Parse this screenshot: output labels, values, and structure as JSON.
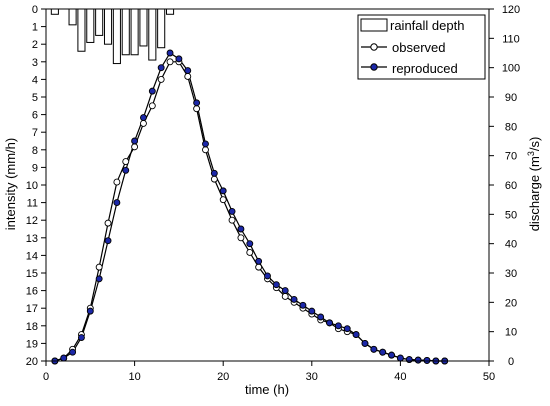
{
  "chart_data": {
    "type": "bar+line",
    "xlabel": "time (h)",
    "ylabel_left": "intensity (mm/h)",
    "ylabel_right_main": "discharge (m",
    "ylabel_right_sup": "3",
    "ylabel_right_end": "/s)",
    "xlim": [
      0,
      50
    ],
    "x_ticks": [
      "0",
      "10",
      "20",
      "30",
      "40",
      "50"
    ],
    "left_axis": {
      "lim": [
        0,
        20
      ],
      "inverted": true,
      "ticks": [
        "0",
        "1",
        "2",
        "3",
        "4",
        "5",
        "6",
        "7",
        "8",
        "9",
        "10",
        "11",
        "12",
        "13",
        "14",
        "15",
        "16",
        "17",
        "18",
        "19",
        "20"
      ]
    },
    "right_axis": {
      "lim": [
        0,
        120
      ],
      "ticks": [
        "0",
        "10",
        "20",
        "30",
        "40",
        "50",
        "60",
        "70",
        "80",
        "90",
        "100",
        "110",
        "120"
      ]
    },
    "legend_position": "top-right",
    "rainfall": {
      "name": "rainfall depth",
      "x": [
        1,
        2,
        3,
        4,
        5,
        6,
        7,
        8,
        9,
        10,
        11,
        12,
        13,
        14
      ],
      "values": [
        0.3,
        0,
        0.9,
        2.4,
        1.9,
        1.5,
        2.0,
        3.1,
        2.6,
        2.6,
        2.1,
        2.9,
        2.2,
        0.3
      ]
    },
    "series": [
      {
        "name": "observed",
        "x": [
          1,
          2,
          3,
          4,
          5,
          6,
          7,
          8,
          9,
          10,
          11,
          12,
          13,
          14,
          15,
          16,
          17,
          18,
          19,
          20,
          21,
          22,
          23,
          24,
          25,
          26,
          27,
          28,
          29,
          30,
          31,
          32,
          33,
          34,
          35,
          36,
          37,
          38,
          39,
          40,
          41,
          42,
          43,
          44,
          45
        ],
        "values": [
          0,
          1,
          4,
          9,
          18,
          32,
          47,
          61,
          68,
          73,
          81,
          87,
          96,
          102,
          102,
          97,
          86,
          72,
          62,
          55,
          48,
          42,
          37,
          32,
          28,
          25,
          22,
          20,
          18,
          16,
          14,
          13,
          11,
          10,
          9,
          6,
          4,
          3,
          2,
          1,
          0.5,
          0.3,
          0.2,
          0,
          0
        ]
      },
      {
        "name": "reproduced",
        "x": [
          1,
          2,
          3,
          4,
          5,
          6,
          7,
          8,
          9,
          10,
          11,
          12,
          13,
          14,
          15,
          16,
          17,
          18,
          19,
          20,
          21,
          22,
          23,
          24,
          25,
          26,
          27,
          28,
          29,
          30,
          31,
          32,
          33,
          34,
          35,
          36,
          37,
          38,
          39,
          40,
          41,
          42,
          43,
          44,
          45
        ],
        "values": [
          0,
          1,
          3,
          8,
          17,
          28,
          41,
          54,
          65,
          75,
          83,
          92,
          100,
          105,
          103,
          99,
          88,
          74,
          64,
          58,
          51,
          45,
          40,
          34,
          29,
          26,
          24,
          21,
          19,
          17,
          15,
          13,
          12,
          11,
          9,
          6,
          4,
          3,
          2,
          1,
          0.5,
          0.3,
          0.2,
          0,
          0
        ]
      }
    ],
    "colors": {
      "observed_fill": "#ffffff",
      "reproduced_fill": "#1c28a8",
      "bar_fill": "#ffffff",
      "line": "#000000"
    }
  }
}
